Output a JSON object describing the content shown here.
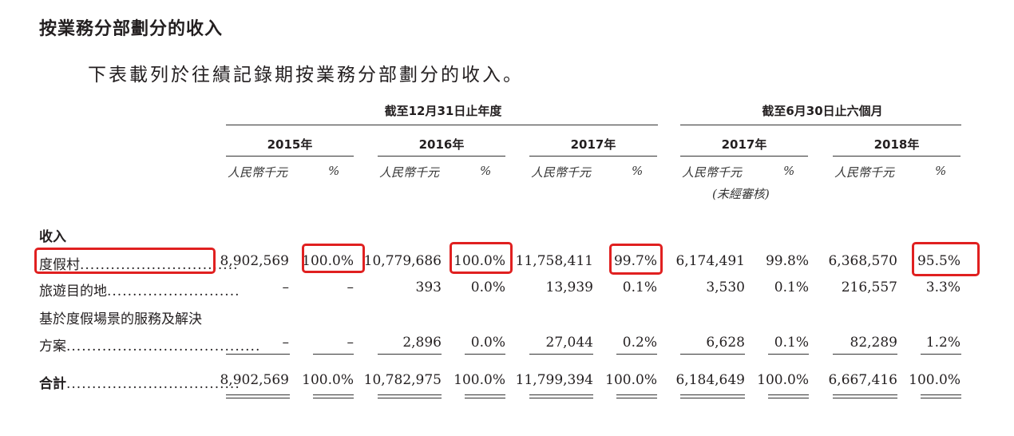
{
  "title": "按業務分部劃分的收入",
  "intro": "下表載列於往績記錄期按業務分部劃分的收入。",
  "group_headers": {
    "year_end": "截至12月31日止年度",
    "six_months": "截至6月30日止六個月"
  },
  "years": [
    "2015年",
    "2016年",
    "2017年",
    "2017年",
    "2018年"
  ],
  "unit_label": "人民幣千元",
  "pct_label": "%",
  "unaudited": "(未經審核)",
  "section_label": "收入",
  "rows": [
    {
      "label": "度假村",
      "dots": "...............................",
      "values": [
        "8,902,569",
        "100.0%",
        "10,779,686",
        "100.0%",
        "11,758,411",
        "99.7%",
        "6,174,491",
        "99.8%",
        "6,368,570",
        "95.5%"
      ]
    },
    {
      "label": "旅遊目的地",
      "dots": "..........................",
      "values": [
        "–",
        "–",
        "393",
        "0.0%",
        "13,939",
        "0.1%",
        "3,530",
        "0.1%",
        "216,557",
        "3.3%"
      ]
    },
    {
      "label": "基於度假場景的服務及解決",
      "label2": "方案",
      "dots": "......................................",
      "values": [
        "–",
        "–",
        "2,896",
        "0.0%",
        "27,044",
        "0.2%",
        "6,628",
        "0.1%",
        "82,289",
        "1.2%"
      ]
    }
  ],
  "total": {
    "label": "合計",
    "dots": "..................................",
    "values": [
      "8,902,569",
      "100.0%",
      "10,782,975",
      "100.0%",
      "11,799,394",
      "100.0%",
      "6,184,649",
      "100.0%",
      "6,667,416",
      "100.0%"
    ]
  },
  "colors": {
    "highlight": "#e02020",
    "text": "#231f20"
  }
}
